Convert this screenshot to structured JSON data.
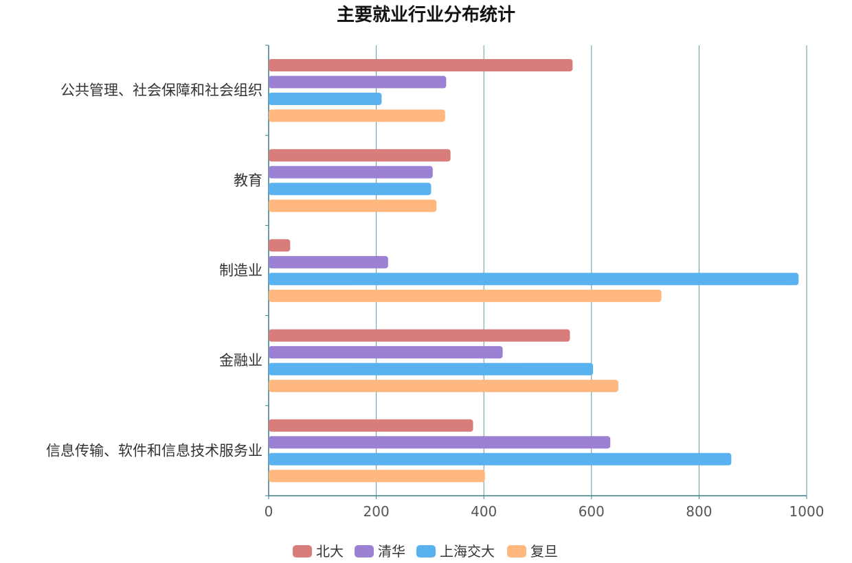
{
  "chart_data": {
    "type": "bar",
    "orientation": "horizontal",
    "title": "主要就业行业分布统计",
    "categories": [
      "公共管理、社会保障和社会组织",
      "教育",
      "制造业",
      "金融业",
      "信息传输、软件和信息技术服务业"
    ],
    "series": [
      {
        "name": "北大",
        "color": "#d87c7c",
        "values": [
          565,
          338,
          40,
          560,
          380
        ]
      },
      {
        "name": "清华",
        "color": "#9b80d3",
        "values": [
          330,
          305,
          222,
          435,
          635
        ]
      },
      {
        "name": "上海交大",
        "color": "#5ab1ef",
        "values": [
          210,
          302,
          985,
          603,
          860
        ]
      },
      {
        "name": "复旦",
        "color": "#ffb980",
        "values": [
          328,
          312,
          730,
          650,
          402
        ]
      }
    ],
    "xlim": [
      0,
      1000
    ],
    "x_ticks": [
      0,
      200,
      400,
      600,
      800,
      1000
    ],
    "grid": true,
    "legend_position": "bottom-center"
  }
}
